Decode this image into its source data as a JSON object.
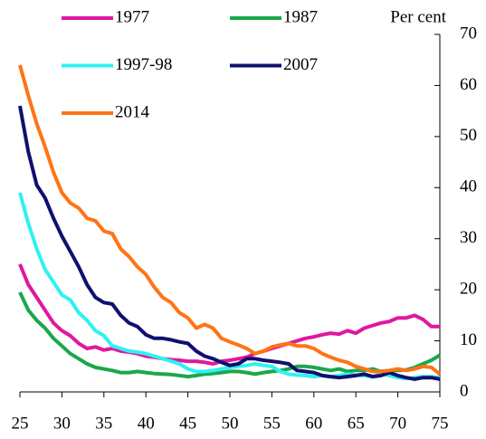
{
  "chart_data": {
    "type": "line",
    "y_label": "Per cent",
    "x": [
      25,
      26,
      27,
      28,
      29,
      30,
      31,
      32,
      33,
      34,
      35,
      36,
      37,
      38,
      39,
      40,
      41,
      42,
      43,
      44,
      45,
      46,
      47,
      48,
      49,
      50,
      51,
      52,
      53,
      54,
      55,
      56,
      57,
      58,
      59,
      60,
      61,
      62,
      63,
      64,
      65,
      66,
      67,
      68,
      69,
      70,
      71,
      72,
      73,
      74,
      75
    ],
    "xlim": [
      25,
      75
    ],
    "xticks": [
      25,
      30,
      35,
      40,
      45,
      50,
      55,
      60,
      65,
      70,
      75
    ],
    "ylim": [
      0,
      70
    ],
    "yticks": [
      0,
      10,
      20,
      30,
      40,
      50,
      60,
      70
    ],
    "series": [
      {
        "name": "1977",
        "color": "#e0189e",
        "values": [
          25,
          21,
          18.5,
          16,
          13.5,
          12,
          11,
          9.5,
          8.5,
          8.8,
          8.2,
          8.5,
          8,
          7.8,
          7.5,
          7,
          6.8,
          6.5,
          6.3,
          6.2,
          6,
          6,
          5.8,
          5.5,
          6,
          6.2,
          6.5,
          6.8,
          7.5,
          8,
          8.5,
          9,
          9.5,
          10,
          10.5,
          10.8,
          11.2,
          11.5,
          11.3,
          12,
          11.5,
          12.5,
          13,
          13.5,
          13.8,
          14.5,
          14.5,
          15,
          14.2,
          12.8,
          12.8
        ]
      },
      {
        "name": "1987",
        "color": "#1aa84b",
        "values": [
          19.5,
          16,
          14,
          12.5,
          10.5,
          9,
          7.5,
          6.5,
          5.5,
          4.8,
          4.5,
          4.2,
          3.8,
          3.8,
          4,
          3.8,
          3.6,
          3.5,
          3.4,
          3.2,
          3,
          3.2,
          3.5,
          3.6,
          3.8,
          4,
          4,
          3.8,
          3.5,
          3.8,
          4,
          4.2,
          4.5,
          5,
          5,
          4.8,
          4.5,
          4.2,
          4.5,
          4,
          4.2,
          4.2,
          4.5,
          4,
          4.2,
          4.2,
          4.3,
          4.8,
          5.5,
          6.2,
          7.2
        ]
      },
      {
        "name": "1997-98",
        "color": "#2ef2f2",
        "values": [
          39,
          33,
          28,
          24,
          21.5,
          19,
          18,
          15.5,
          14,
          12,
          11,
          9,
          8.5,
          8,
          7.8,
          7.5,
          7,
          6.5,
          6,
          5.5,
          4.5,
          4,
          4,
          4.2,
          4.5,
          4.8,
          5,
          5.2,
          5.5,
          5.2,
          5,
          4,
          3.5,
          3.3,
          3.2,
          3,
          3.2,
          3,
          3.2,
          3.5,
          3.3,
          3.2,
          3,
          3.5,
          3.2,
          2.8,
          2.6,
          2.8,
          3,
          3,
          2.8
        ]
      },
      {
        "name": "2007",
        "color": "#10106e",
        "values": [
          56,
          47,
          40.5,
          38,
          34,
          30.5,
          27.5,
          24.5,
          21,
          18.5,
          17.5,
          17.2,
          15,
          13.5,
          12.8,
          11.2,
          10.5,
          10.5,
          10.2,
          9.8,
          9.5,
          8,
          7,
          6.5,
          5.8,
          5.2,
          5.5,
          6.5,
          6.5,
          6.2,
          6,
          5.8,
          5.5,
          4.2,
          4,
          3.8,
          3.2,
          3,
          2.8,
          3,
          3.2,
          3.5,
          3,
          3.2,
          3.8,
          3.2,
          2.8,
          2.5,
          2.8,
          2.8,
          2.5
        ]
      },
      {
        "name": "2014",
        "color": "#ff7414",
        "values": [
          64,
          58,
          52.5,
          48,
          43,
          39,
          37,
          36,
          34,
          33.5,
          31.5,
          31,
          28,
          26.5,
          24.5,
          23,
          20.5,
          18.5,
          17.5,
          15.5,
          14.5,
          12.5,
          13.2,
          12.5,
          10.5,
          9.8,
          9.2,
          8.5,
          7.5,
          8,
          8.8,
          9.2,
          9.5,
          9,
          9,
          8.5,
          7.5,
          6.8,
          6.2,
          5.8,
          5,
          4.5,
          4,
          4,
          4.2,
          4.5,
          4.2,
          4.5,
          5,
          4.8,
          3.5
        ]
      }
    ]
  }
}
